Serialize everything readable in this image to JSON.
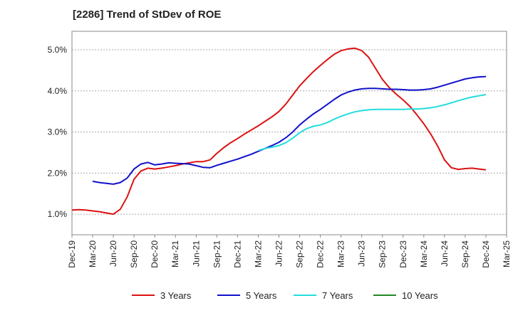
{
  "title": "[2286]  Trend of StDev of ROE",
  "chart_data": {
    "type": "line",
    "title": "[2286]  Trend of StDev of ROE",
    "xlabel": "",
    "ylabel": "",
    "x_ticks": [
      "Dec-19",
      "Mar-20",
      "Jun-20",
      "Sep-20",
      "Dec-20",
      "Mar-21",
      "Jun-21",
      "Sep-21",
      "Dec-21",
      "Mar-22",
      "Jun-22",
      "Sep-22",
      "Dec-22",
      "Mar-23",
      "Jun-23",
      "Sep-23",
      "Dec-23",
      "Mar-24",
      "Jun-24",
      "Sep-24",
      "Dec-24",
      "Mar-25"
    ],
    "y_ticks": [
      "1.0%",
      "2.0%",
      "3.0%",
      "4.0%",
      "5.0%"
    ],
    "ylim": [
      0.5,
      5.45
    ],
    "grid": true,
    "legend_position": "bottom",
    "series": [
      {
        "name": "3 Years",
        "color": "#dd1111",
        "points": [
          [
            "Dec-19",
            1.1
          ],
          [
            "Jan-20",
            1.11
          ],
          [
            "Feb-20",
            1.1
          ],
          [
            "Mar-20",
            1.08
          ],
          [
            "Apr-20",
            1.06
          ],
          [
            "May-20",
            1.03
          ],
          [
            "Jun-20",
            1.0
          ],
          [
            "Jul-20",
            1.12
          ],
          [
            "Aug-20",
            1.42
          ],
          [
            "Sep-20",
            1.85
          ],
          [
            "Oct-20",
            2.05
          ],
          [
            "Nov-20",
            2.12
          ],
          [
            "Dec-20",
            2.1
          ],
          [
            "Jan-21",
            2.12
          ],
          [
            "Feb-21",
            2.15
          ],
          [
            "Mar-21",
            2.18
          ],
          [
            "Apr-21",
            2.22
          ],
          [
            "May-21",
            2.25
          ],
          [
            "Jun-21",
            2.28
          ],
          [
            "Jul-21",
            2.28
          ],
          [
            "Aug-21",
            2.32
          ],
          [
            "Sep-21",
            2.48
          ],
          [
            "Oct-21",
            2.62
          ],
          [
            "Nov-21",
            2.74
          ],
          [
            "Dec-21",
            2.84
          ],
          [
            "Jan-22",
            2.95
          ],
          [
            "Feb-22",
            3.05
          ],
          [
            "Mar-22",
            3.15
          ],
          [
            "Apr-22",
            3.26
          ],
          [
            "May-22",
            3.37
          ],
          [
            "Jun-22",
            3.5
          ],
          [
            "Jul-22",
            3.68
          ],
          [
            "Aug-22",
            3.9
          ],
          [
            "Sep-22",
            4.12
          ],
          [
            "Oct-22",
            4.3
          ],
          [
            "Nov-22",
            4.47
          ],
          [
            "Dec-22",
            4.62
          ],
          [
            "Jan-23",
            4.76
          ],
          [
            "Feb-23",
            4.89
          ],
          [
            "Mar-23",
            4.98
          ],
          [
            "Apr-23",
            5.02
          ],
          [
            "May-23",
            5.04
          ],
          [
            "Jun-23",
            4.98
          ],
          [
            "Jul-23",
            4.82
          ],
          [
            "Aug-23",
            4.55
          ],
          [
            "Sep-23",
            4.28
          ],
          [
            "Oct-23",
            4.08
          ],
          [
            "Nov-23",
            3.92
          ],
          [
            "Dec-23",
            3.78
          ],
          [
            "Jan-24",
            3.62
          ],
          [
            "Feb-24",
            3.42
          ],
          [
            "Mar-24",
            3.2
          ],
          [
            "Apr-24",
            2.95
          ],
          [
            "May-24",
            2.66
          ],
          [
            "Jun-24",
            2.32
          ],
          [
            "Jul-24",
            2.13
          ],
          [
            "Aug-24",
            2.09
          ],
          [
            "Sep-24",
            2.11
          ],
          [
            "Oct-24",
            2.12
          ],
          [
            "Nov-24",
            2.1
          ],
          [
            "Dec-24",
            2.08
          ]
        ]
      },
      {
        "name": "5 Years",
        "color": "#1111cc",
        "points": [
          [
            "Mar-20",
            1.8
          ],
          [
            "Apr-20",
            1.77
          ],
          [
            "May-20",
            1.75
          ],
          [
            "Jun-20",
            1.73
          ],
          [
            "Jul-20",
            1.77
          ],
          [
            "Aug-20",
            1.88
          ],
          [
            "Sep-20",
            2.1
          ],
          [
            "Oct-20",
            2.22
          ],
          [
            "Nov-20",
            2.26
          ],
          [
            "Dec-20",
            2.2
          ],
          [
            "Jan-21",
            2.22
          ],
          [
            "Feb-21",
            2.25
          ],
          [
            "Mar-21",
            2.24
          ],
          [
            "Apr-21",
            2.23
          ],
          [
            "May-21",
            2.22
          ],
          [
            "Jun-21",
            2.18
          ],
          [
            "Jul-21",
            2.14
          ],
          [
            "Aug-21",
            2.13
          ],
          [
            "Sep-21",
            2.19
          ],
          [
            "Oct-21",
            2.24
          ],
          [
            "Nov-21",
            2.29
          ],
          [
            "Dec-21",
            2.34
          ],
          [
            "Jan-22",
            2.4
          ],
          [
            "Feb-22",
            2.46
          ],
          [
            "Mar-22",
            2.53
          ],
          [
            "Apr-22",
            2.6
          ],
          [
            "May-22",
            2.67
          ],
          [
            "Jun-22",
            2.75
          ],
          [
            "Jul-22",
            2.86
          ],
          [
            "Aug-22",
            3.0
          ],
          [
            "Sep-22",
            3.17
          ],
          [
            "Oct-22",
            3.31
          ],
          [
            "Nov-22",
            3.44
          ],
          [
            "Dec-22",
            3.55
          ],
          [
            "Jan-23",
            3.67
          ],
          [
            "Feb-23",
            3.79
          ],
          [
            "Mar-23",
            3.9
          ],
          [
            "Apr-23",
            3.97
          ],
          [
            "May-23",
            4.02
          ],
          [
            "Jun-23",
            4.05
          ],
          [
            "Jul-23",
            4.06
          ],
          [
            "Aug-23",
            4.06
          ],
          [
            "Sep-23",
            4.05
          ],
          [
            "Oct-23",
            4.04
          ],
          [
            "Nov-23",
            4.04
          ],
          [
            "Dec-23",
            4.03
          ],
          [
            "Jan-24",
            4.02
          ],
          [
            "Feb-24",
            4.02
          ],
          [
            "Mar-24",
            4.03
          ],
          [
            "Apr-24",
            4.05
          ],
          [
            "May-24",
            4.09
          ],
          [
            "Jun-24",
            4.14
          ],
          [
            "Jul-24",
            4.19
          ],
          [
            "Aug-24",
            4.24
          ],
          [
            "Sep-24",
            4.29
          ],
          [
            "Oct-24",
            4.32
          ],
          [
            "Nov-24",
            4.34
          ],
          [
            "Dec-24",
            4.35
          ]
        ]
      },
      {
        "name": "7 Years",
        "color": "#22dddd",
        "points": [
          [
            "Mar-22",
            2.55
          ],
          [
            "Apr-22",
            2.6
          ],
          [
            "May-22",
            2.63
          ],
          [
            "Jun-22",
            2.67
          ],
          [
            "Jul-22",
            2.74
          ],
          [
            "Aug-22",
            2.85
          ],
          [
            "Sep-22",
            2.98
          ],
          [
            "Oct-22",
            3.08
          ],
          [
            "Nov-22",
            3.14
          ],
          [
            "Dec-22",
            3.17
          ],
          [
            "Jan-23",
            3.23
          ],
          [
            "Feb-23",
            3.31
          ],
          [
            "Mar-23",
            3.38
          ],
          [
            "Apr-23",
            3.44
          ],
          [
            "May-23",
            3.49
          ],
          [
            "Jun-23",
            3.52
          ],
          [
            "Jul-23",
            3.54
          ],
          [
            "Aug-23",
            3.55
          ],
          [
            "Sep-23",
            3.55
          ],
          [
            "Oct-23",
            3.55
          ],
          [
            "Nov-23",
            3.55
          ],
          [
            "Dec-23",
            3.55
          ],
          [
            "Jan-24",
            3.56
          ],
          [
            "Feb-24",
            3.56
          ],
          [
            "Mar-24",
            3.57
          ],
          [
            "Apr-24",
            3.59
          ],
          [
            "May-24",
            3.62
          ],
          [
            "Jun-24",
            3.66
          ],
          [
            "Jul-24",
            3.71
          ],
          [
            "Aug-24",
            3.76
          ],
          [
            "Sep-24",
            3.81
          ],
          [
            "Oct-24",
            3.85
          ],
          [
            "Nov-24",
            3.88
          ],
          [
            "Dec-24",
            3.91
          ]
        ]
      },
      {
        "name": "10 Years",
        "color": "#228822",
        "points": []
      }
    ]
  }
}
